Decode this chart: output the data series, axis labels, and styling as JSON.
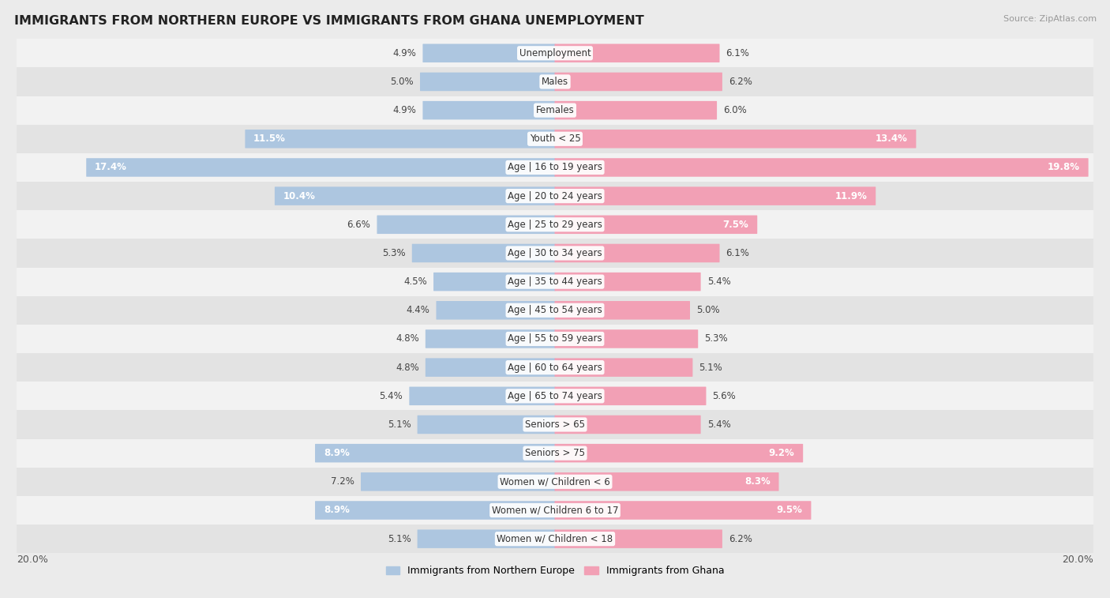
{
  "title": "IMMIGRANTS FROM NORTHERN EUROPE VS IMMIGRANTS FROM GHANA UNEMPLOYMENT",
  "source": "Source: ZipAtlas.com",
  "categories": [
    "Unemployment",
    "Males",
    "Females",
    "Youth < 25",
    "Age | 16 to 19 years",
    "Age | 20 to 24 years",
    "Age | 25 to 29 years",
    "Age | 30 to 34 years",
    "Age | 35 to 44 years",
    "Age | 45 to 54 years",
    "Age | 55 to 59 years",
    "Age | 60 to 64 years",
    "Age | 65 to 74 years",
    "Seniors > 65",
    "Seniors > 75",
    "Women w/ Children < 6",
    "Women w/ Children 6 to 17",
    "Women w/ Children < 18"
  ],
  "left_values": [
    4.9,
    5.0,
    4.9,
    11.5,
    17.4,
    10.4,
    6.6,
    5.3,
    4.5,
    4.4,
    4.8,
    4.8,
    5.4,
    5.1,
    8.9,
    7.2,
    8.9,
    5.1
  ],
  "right_values": [
    6.1,
    6.2,
    6.0,
    13.4,
    19.8,
    11.9,
    7.5,
    6.1,
    5.4,
    5.0,
    5.3,
    5.1,
    5.6,
    5.4,
    9.2,
    8.3,
    9.5,
    6.2
  ],
  "left_color": "#adc6e0",
  "right_color": "#f2a0b5",
  "left_label": "Immigrants from Northern Europe",
  "right_label": "Immigrants from Ghana",
  "axis_max": 20.0,
  "bg_color": "#ebebeb",
  "row_bg_light": "#f2f2f2",
  "row_bg_dark": "#e3e3e3",
  "title_color": "#222222",
  "value_fontsize": 8.5,
  "cat_fontsize": 8.5,
  "title_fontsize": 11.5
}
